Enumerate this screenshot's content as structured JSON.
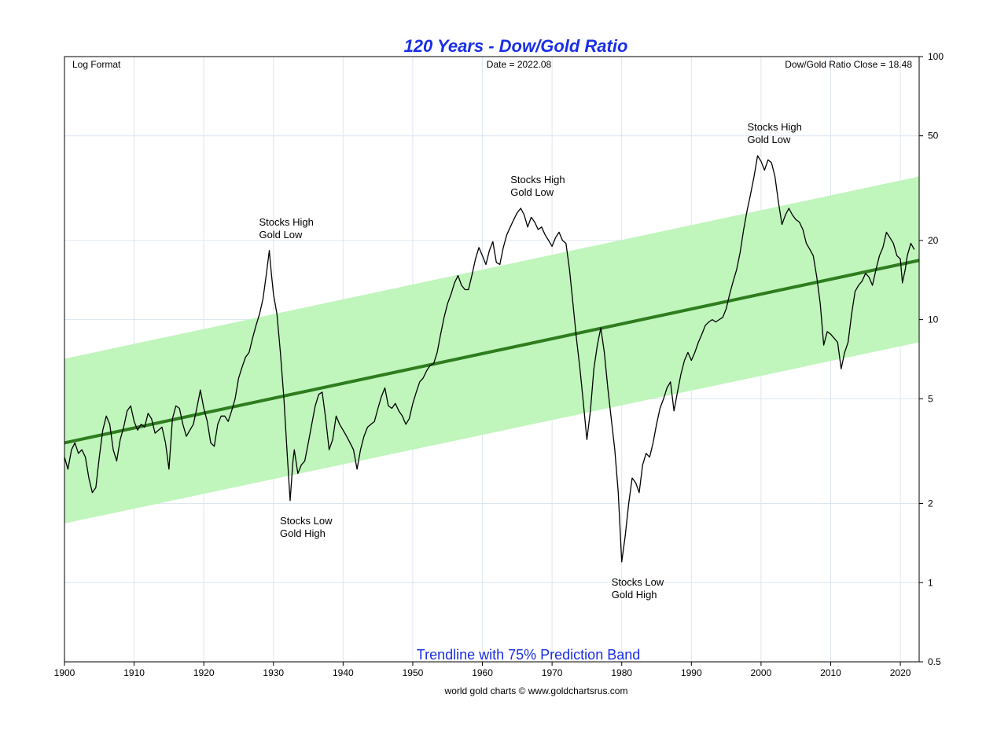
{
  "chart_data": {
    "type": "line",
    "title": "120 Years - Dow/Gold Ratio",
    "subtitle": "Trendline with 75% Prediction Band",
    "log_scale": true,
    "xlim": [
      1900,
      2022.7
    ],
    "ylim": [
      0.5,
      100
    ],
    "x_ticks": [
      1900,
      1910,
      1920,
      1930,
      1940,
      1950,
      1960,
      1970,
      1980,
      1990,
      2000,
      2010,
      2020
    ],
    "y_ticks": [
      0.5,
      1,
      2,
      5,
      10,
      20,
      50,
      100
    ],
    "grid": true,
    "series": [
      {
        "type": "line",
        "color": "#000000",
        "points": [
          [
            1900,
            3.0
          ],
          [
            1900.5,
            2.7
          ],
          [
            1901,
            3.2
          ],
          [
            1901.5,
            3.4
          ],
          [
            1902,
            3.1
          ],
          [
            1902.5,
            3.2
          ],
          [
            1903,
            3.0
          ],
          [
            1903.5,
            2.5
          ],
          [
            1904,
            2.2
          ],
          [
            1904.5,
            2.3
          ],
          [
            1905,
            3.0
          ],
          [
            1905.5,
            3.8
          ],
          [
            1906,
            4.3
          ],
          [
            1906.5,
            4.0
          ],
          [
            1907,
            3.2
          ],
          [
            1907.5,
            2.9
          ],
          [
            1908,
            3.5
          ],
          [
            1908.5,
            3.9
          ],
          [
            1909,
            4.5
          ],
          [
            1909.5,
            4.7
          ],
          [
            1910,
            4.1
          ],
          [
            1910.5,
            3.8
          ],
          [
            1911,
            4.0
          ],
          [
            1911.5,
            3.9
          ],
          [
            1912,
            4.4
          ],
          [
            1912.5,
            4.2
          ],
          [
            1913,
            3.7
          ],
          [
            1913.5,
            3.8
          ],
          [
            1914,
            3.9
          ],
          [
            1914.5,
            3.4
          ],
          [
            1915,
            2.7
          ],
          [
            1915.5,
            4.2
          ],
          [
            1916,
            4.7
          ],
          [
            1916.5,
            4.6
          ],
          [
            1917,
            4.0
          ],
          [
            1917.5,
            3.6
          ],
          [
            1918,
            3.8
          ],
          [
            1918.5,
            4.0
          ],
          [
            1919,
            4.6
          ],
          [
            1919.5,
            5.4
          ],
          [
            1920,
            4.6
          ],
          [
            1920.5,
            4.1
          ],
          [
            1921,
            3.4
          ],
          [
            1921.5,
            3.3
          ],
          [
            1922,
            4.0
          ],
          [
            1922.5,
            4.3
          ],
          [
            1923,
            4.3
          ],
          [
            1923.5,
            4.1
          ],
          [
            1924,
            4.5
          ],
          [
            1924.5,
            5.0
          ],
          [
            1925,
            6.0
          ],
          [
            1925.5,
            6.6
          ],
          [
            1926,
            7.2
          ],
          [
            1926.5,
            7.5
          ],
          [
            1927,
            8.5
          ],
          [
            1927.5,
            9.5
          ],
          [
            1928,
            10.5
          ],
          [
            1928.5,
            12.0
          ],
          [
            1929,
            15.0
          ],
          [
            1929.4,
            18.3
          ],
          [
            1929.7,
            15.0
          ],
          [
            1930,
            12.5
          ],
          [
            1930.5,
            10.5
          ],
          [
            1931,
            7.5
          ],
          [
            1931.5,
            5.0
          ],
          [
            1932,
            3.0
          ],
          [
            1932.4,
            2.05
          ],
          [
            1932.8,
            2.9
          ],
          [
            1933,
            3.2
          ],
          [
            1933.5,
            2.6
          ],
          [
            1934,
            2.8
          ],
          [
            1934.5,
            2.9
          ],
          [
            1935,
            3.4
          ],
          [
            1935.5,
            4.0
          ],
          [
            1936,
            4.7
          ],
          [
            1936.5,
            5.2
          ],
          [
            1937,
            5.3
          ],
          [
            1937.5,
            4.2
          ],
          [
            1938,
            3.2
          ],
          [
            1938.5,
            3.5
          ],
          [
            1939,
            4.3
          ],
          [
            1939.5,
            4.0
          ],
          [
            1940,
            3.8
          ],
          [
            1940.5,
            3.6
          ],
          [
            1941,
            3.4
          ],
          [
            1941.5,
            3.2
          ],
          [
            1942,
            2.7
          ],
          [
            1942.5,
            3.2
          ],
          [
            1943,
            3.6
          ],
          [
            1943.5,
            3.9
          ],
          [
            1944,
            4.0
          ],
          [
            1944.5,
            4.1
          ],
          [
            1945,
            4.6
          ],
          [
            1945.5,
            5.1
          ],
          [
            1946,
            5.5
          ],
          [
            1946.5,
            4.7
          ],
          [
            1947,
            4.6
          ],
          [
            1947.5,
            4.8
          ],
          [
            1948,
            4.5
          ],
          [
            1948.5,
            4.3
          ],
          [
            1949,
            4.0
          ],
          [
            1949.5,
            4.2
          ],
          [
            1950,
            4.8
          ],
          [
            1950.5,
            5.3
          ],
          [
            1951,
            5.8
          ],
          [
            1951.5,
            6.0
          ],
          [
            1952,
            6.4
          ],
          [
            1952.5,
            6.7
          ],
          [
            1953,
            6.8
          ],
          [
            1953.5,
            7.5
          ],
          [
            1954,
            8.8
          ],
          [
            1954.5,
            10.2
          ],
          [
            1955,
            11.5
          ],
          [
            1955.5,
            12.5
          ],
          [
            1956,
            13.8
          ],
          [
            1956.5,
            14.7
          ],
          [
            1957,
            13.5
          ],
          [
            1957.5,
            13.0
          ],
          [
            1958,
            13.0
          ],
          [
            1958.5,
            14.8
          ],
          [
            1959,
            17.0
          ],
          [
            1959.5,
            18.8
          ],
          [
            1960,
            17.5
          ],
          [
            1960.5,
            16.2
          ],
          [
            1961,
            18.3
          ],
          [
            1961.5,
            19.8
          ],
          [
            1962,
            16.5
          ],
          [
            1962.5,
            16.2
          ],
          [
            1963,
            18.8
          ],
          [
            1963.5,
            21.0
          ],
          [
            1964,
            22.5
          ],
          [
            1964.5,
            24.0
          ],
          [
            1965,
            25.5
          ],
          [
            1965.5,
            26.5
          ],
          [
            1966,
            25.0
          ],
          [
            1966.5,
            22.5
          ],
          [
            1967,
            24.5
          ],
          [
            1967.5,
            23.5
          ],
          [
            1968,
            22.0
          ],
          [
            1968.5,
            22.5
          ],
          [
            1969,
            21.0
          ],
          [
            1969.5,
            20.0
          ],
          [
            1970,
            19.0
          ],
          [
            1970.5,
            20.5
          ],
          [
            1971,
            21.5
          ],
          [
            1971.5,
            20.0
          ],
          [
            1972,
            19.5
          ],
          [
            1972.5,
            15.5
          ],
          [
            1973,
            11.5
          ],
          [
            1973.5,
            8.5
          ],
          [
            1974,
            6.5
          ],
          [
            1974.5,
            4.8
          ],
          [
            1975,
            3.5
          ],
          [
            1975.5,
            4.5
          ],
          [
            1976,
            6.5
          ],
          [
            1976.5,
            8.0
          ],
          [
            1977,
            9.3
          ],
          [
            1977.5,
            7.5
          ],
          [
            1978,
            5.5
          ],
          [
            1978.5,
            4.2
          ],
          [
            1979,
            3.2
          ],
          [
            1979.5,
            2.2
          ],
          [
            1980,
            1.2
          ],
          [
            1980.5,
            1.5
          ],
          [
            1981,
            2.0
          ],
          [
            1981.5,
            2.5
          ],
          [
            1982,
            2.4
          ],
          [
            1982.5,
            2.2
          ],
          [
            1983,
            2.8
          ],
          [
            1983.5,
            3.1
          ],
          [
            1984,
            3.0
          ],
          [
            1984.5,
            3.4
          ],
          [
            1985,
            4.0
          ],
          [
            1985.5,
            4.6
          ],
          [
            1986,
            5.0
          ],
          [
            1986.5,
            5.5
          ],
          [
            1987,
            5.8
          ],
          [
            1987.5,
            4.5
          ],
          [
            1988,
            5.3
          ],
          [
            1988.5,
            6.2
          ],
          [
            1989,
            7.0
          ],
          [
            1989.5,
            7.5
          ],
          [
            1990,
            7.0
          ],
          [
            1990.5,
            7.5
          ],
          [
            1991,
            8.2
          ],
          [
            1991.5,
            8.8
          ],
          [
            1992,
            9.5
          ],
          [
            1992.5,
            9.8
          ],
          [
            1993,
            10.0
          ],
          [
            1993.5,
            9.8
          ],
          [
            1994,
            10.0
          ],
          [
            1994.5,
            10.2
          ],
          [
            1995,
            11.0
          ],
          [
            1995.5,
            12.5
          ],
          [
            1996,
            14.0
          ],
          [
            1996.5,
            15.5
          ],
          [
            1997,
            18.0
          ],
          [
            1997.5,
            22.0
          ],
          [
            1998,
            26.0
          ],
          [
            1998.5,
            30.0
          ],
          [
            1999,
            35.0
          ],
          [
            1999.5,
            42.0
          ],
          [
            2000,
            40.0
          ],
          [
            2000.5,
            37.0
          ],
          [
            2001,
            40.5
          ],
          [
            2001.5,
            39.5
          ],
          [
            2002,
            35.0
          ],
          [
            2002.5,
            28.0
          ],
          [
            2003,
            23.0
          ],
          [
            2003.5,
            25.0
          ],
          [
            2004,
            26.5
          ],
          [
            2004.5,
            25.0
          ],
          [
            2005,
            24.0
          ],
          [
            2005.5,
            23.5
          ],
          [
            2006,
            22.0
          ],
          [
            2006.5,
            19.5
          ],
          [
            2007,
            18.5
          ],
          [
            2007.5,
            17.5
          ],
          [
            2008,
            14.5
          ],
          [
            2008.5,
            11.5
          ],
          [
            2009,
            8.0
          ],
          [
            2009.5,
            9.0
          ],
          [
            2010,
            8.8
          ],
          [
            2010.5,
            8.5
          ],
          [
            2011,
            8.2
          ],
          [
            2011.5,
            6.5
          ],
          [
            2012,
            7.5
          ],
          [
            2012.5,
            8.2
          ],
          [
            2013,
            10.5
          ],
          [
            2013.5,
            12.8
          ],
          [
            2014,
            13.5
          ],
          [
            2014.5,
            14.0
          ],
          [
            2015,
            15.0
          ],
          [
            2015.5,
            14.5
          ],
          [
            2016,
            13.5
          ],
          [
            2016.5,
            15.5
          ],
          [
            2017,
            17.5
          ],
          [
            2017.5,
            18.8
          ],
          [
            2018,
            21.5
          ],
          [
            2018.5,
            20.5
          ],
          [
            2019,
            19.5
          ],
          [
            2019.5,
            17.5
          ],
          [
            2020,
            17.0
          ],
          [
            2020.3,
            13.8
          ],
          [
            2020.7,
            15.5
          ],
          [
            2021,
            17.5
          ],
          [
            2021.5,
            19.5
          ],
          [
            2022,
            18.48
          ]
        ]
      },
      {
        "type": "trendline",
        "color": "#2e7d1e",
        "x": [
          1900,
          2022.7
        ],
        "y": [
          3.4,
          16.8
        ]
      },
      {
        "type": "prediction_band",
        "color": "#c0f5bc",
        "x": [
          1900,
          2022.7
        ],
        "upper": [
          7.1,
          35.0
        ],
        "lower": [
          1.68,
          8.2
        ]
      }
    ],
    "annotations": {
      "top_left": "Log Format",
      "top_center": "Date = 2022.08",
      "top_right": "Dow/Gold Ratio Close = 18.48",
      "labels": [
        {
          "x": 1929.4,
          "y": 18.3,
          "lines": [
            "Stocks High",
            "Gold Low"
          ],
          "position": "above"
        },
        {
          "x": 1932.4,
          "y": 2.05,
          "lines": [
            "Stocks Low",
            "Gold High"
          ],
          "position": "below"
        },
        {
          "x": 1965.5,
          "y": 26.5,
          "lines": [
            "Stocks High",
            "Gold Low"
          ],
          "position": "above"
        },
        {
          "x": 1980,
          "y": 1.2,
          "lines": [
            "Stocks Low",
            "Gold High"
          ],
          "position": "below"
        },
        {
          "x": 1999.5,
          "y": 42.0,
          "lines": [
            "Stocks High",
            "Gold Low"
          ],
          "position": "above"
        }
      ]
    },
    "footer": "world gold charts © www.goldchartsrus.com"
  },
  "colors": {
    "title": "#1a2ee6",
    "subtitle": "#1a2ee6",
    "grid": "#dde6ef",
    "axis": "#000000"
  }
}
